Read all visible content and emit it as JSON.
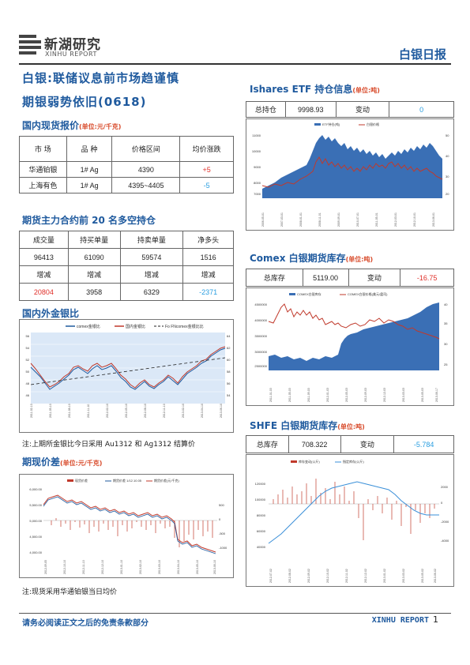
{
  "header": {
    "logo_name": "新湖研究",
    "logo_sub": "XINHU REPORT",
    "report_tag": "白银日报"
  },
  "title": {
    "line1": "白银:联储议息前市场趋谨慎",
    "line2": "期银弱势依旧(0618)"
  },
  "spot": {
    "title": "国内现货报价",
    "unit": "(单位:元/千克)",
    "headers": [
      "市 场",
      "品 种",
      "价格区间",
      "均价涨跌"
    ],
    "rows": [
      [
        "华通铂银",
        "1# Ag",
        "4390",
        "+5"
      ],
      [
        "上海有色",
        "1# Ag",
        "4395~4405",
        "-5"
      ]
    ]
  },
  "positions": {
    "title": "期货主力合约前 20 名多空持仓",
    "headers": [
      "成交量",
      "持买单量",
      "持卖单量",
      "净多头"
    ],
    "values": [
      "96413",
      "61090",
      "59574",
      "1516"
    ],
    "change_headers": [
      "增减",
      "增减",
      "增减",
      "增减"
    ],
    "changes": [
      "20804",
      "3958",
      "6329",
      "-2371"
    ]
  },
  "ratio": {
    "title": "国内外金银比",
    "legend": [
      "comex金银比",
      "国内金银比",
      "Fo FNcomex金银比比"
    ],
    "note": "注:上期所金银比今日采用 Au1312 和 Ag1312 结算价"
  },
  "spread": {
    "title": "期现价差",
    "unit": "(单位:元/千克)",
    "legend": [
      "现货价差",
      "期货价差 1/12.10.05",
      "期货价差(元/千克)"
    ],
    "y_ticks": [
      "6,000.00",
      "5,500.00",
      "5,000.00",
      "4,500.00",
      "4,000.00"
    ],
    "y2_ticks": [
      "500",
      "0",
      "-500",
      "-1000"
    ],
    "note": "注:现货采用华通铂银当日均价"
  },
  "etf": {
    "title": "Ishares ETF 持仓信息",
    "unit": "(单位:吨)",
    "label_total": "总持仓",
    "total": "9998.93",
    "label_change": "变动",
    "change": "0",
    "legend": [
      "ETF持仓(吨)",
      "白银价格"
    ],
    "y_ticks": [
      "11000",
      "10000",
      "9000",
      "8000",
      "7000"
    ],
    "y2_ticks": [
      "50",
      "40",
      "30",
      "20"
    ]
  },
  "comex": {
    "title": "Comex 白银期货库存",
    "unit": "(单位:吨)",
    "label_total": "总库存",
    "total": "5119.00",
    "label_change": "变动",
    "change": "-16.75",
    "legend": [
      "COMEX白银库存",
      "COMEX白银价格(美元/盎司)"
    ],
    "y_ticks": [
      "4500000",
      "4000000",
      "3500000",
      "3000000",
      "2500000"
    ],
    "y2_ticks": [
      "40",
      "35",
      "30",
      "25"
    ]
  },
  "shfe": {
    "title": "SHFE 白银期货库存",
    "unit": "(单位:吨)",
    "label_total": "总库存",
    "total": "708.322",
    "label_change": "变动",
    "change": "-5.784",
    "legend": [
      "库存变动(公斤)",
      "指定库存(公斤)"
    ],
    "y_ticks": [
      "120000",
      "100000",
      "80000",
      "60000",
      "40000"
    ],
    "y2_ticks": [
      "2000",
      "0",
      "-2000",
      "-4000"
    ]
  },
  "footer": {
    "disclaimer": "请务必阅读正文之后的免责条款部分",
    "brand": "XINHU REPORT",
    "page": "1"
  },
  "colors": {
    "title_blue": "#1f5a9e",
    "unit_red": "#d84a2a",
    "value_red": "#e0302a",
    "value_blue": "#2a9ee0"
  }
}
